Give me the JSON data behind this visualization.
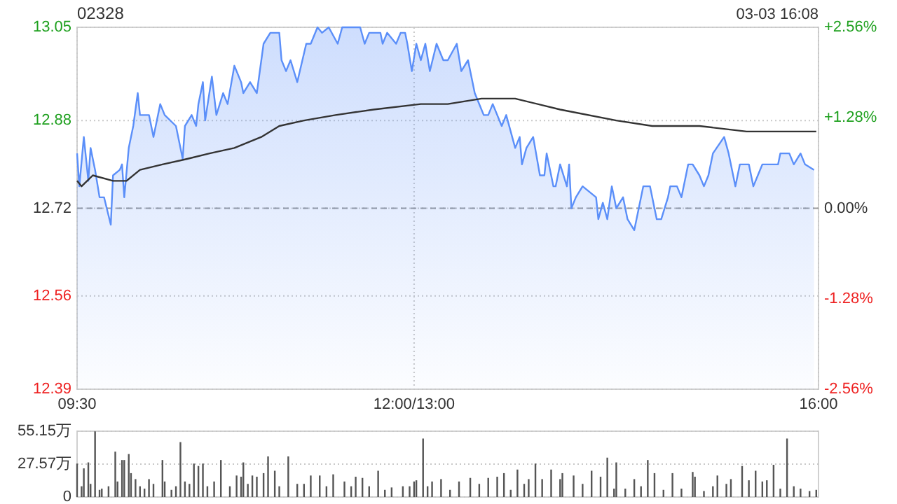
{
  "chart_data": [
    {
      "type": "area",
      "title": "02328",
      "annotations": [
        "03-03 16:08"
      ],
      "categories": [
        "09:30",
        null,
        null,
        null,
        null,
        null,
        null,
        null,
        null,
        null,
        null,
        null,
        null,
        null,
        null,
        null,
        null,
        null,
        null,
        null,
        null,
        null,
        null,
        null,
        null,
        null,
        null,
        null,
        null,
        null,
        null,
        null,
        null,
        null,
        null,
        null,
        null,
        null,
        null,
        null,
        null,
        null,
        null,
        null,
        null,
        null,
        null,
        null,
        null,
        null,
        null,
        null,
        null,
        null,
        null,
        null,
        null,
        null,
        null,
        null,
        null,
        null,
        null,
        null,
        null,
        null,
        null,
        null,
        null,
        null,
        null,
        null,
        null,
        null,
        null,
        null,
        null,
        null,
        null,
        null,
        null,
        null,
        null,
        null,
        null,
        null,
        null,
        null,
        null,
        null,
        null,
        null,
        null,
        null,
        null,
        null,
        null,
        null,
        null,
        null,
        null,
        null,
        null,
        null,
        null,
        null,
        null,
        null,
        null,
        null,
        null,
        null,
        null,
        null,
        null,
        null,
        null,
        null,
        null,
        null,
        null,
        null,
        null,
        null,
        null,
        null,
        null,
        null,
        null,
        null,
        null,
        null,
        null,
        null,
        null,
        null,
        null,
        null,
        null,
        null,
        null,
        null,
        null,
        null,
        null,
        null,
        null,
        null,
        null,
        null,
        "12:00/13:00",
        null,
        null,
        null,
        null,
        null,
        null,
        null,
        null,
        null,
        null,
        null,
        null,
        null,
        null,
        null,
        null,
        null,
        null,
        null,
        null,
        null,
        null,
        null,
        null,
        null,
        null,
        null,
        null,
        null,
        null,
        null,
        null,
        null,
        null,
        null,
        null,
        null,
        null,
        null,
        null,
        null,
        null,
        null,
        null,
        null,
        null,
        null,
        null,
        null,
        null,
        null,
        null,
        null,
        null,
        null,
        null,
        null,
        null,
        null,
        null,
        null,
        null,
        null,
        null,
        null,
        null,
        null,
        null,
        null,
        null,
        null,
        null,
        null,
        null,
        null,
        null,
        null,
        null,
        null,
        null,
        null,
        null,
        null,
        null,
        null,
        null,
        null,
        null,
        null,
        null,
        null,
        null,
        null,
        null,
        null,
        null,
        null,
        null,
        null,
        null,
        null,
        null,
        null,
        null,
        null,
        null,
        null,
        null,
        null,
        null,
        null,
        null,
        null,
        null,
        null,
        null,
        null,
        null,
        null,
        null,
        null,
        null,
        null,
        null,
        null,
        null,
        null,
        null,
        null,
        null,
        null,
        null,
        null,
        null,
        null,
        null,
        null,
        null,
        null,
        null,
        null,
        null,
        null,
        null,
        null,
        null,
        null,
        null,
        null,
        null,
        null,
        null,
        null,
        null,
        null,
        null,
        null,
        null,
        null,
        null,
        null,
        null,
        null,
        null,
        null,
        null,
        null,
        null,
        null,
        null,
        null,
        null,
        null,
        null,
        null,
        null,
        null,
        null,
        null,
        "16:00"
      ],
      "ylim": [
        12.39,
        13.05
      ],
      "yticks": [
        12.39,
        12.56,
        12.72,
        12.88,
        13.05
      ],
      "y2lim": [
        -2.56,
        2.56
      ],
      "y2ticks": [
        {
          "value": 2.56,
          "label": "+2.56%"
        },
        {
          "value": 1.28,
          "label": "+1.28%"
        },
        {
          "value": 0,
          "label": "0.00%"
        },
        {
          "value": -1.28,
          "label": "-1.28%"
        },
        {
          "value": -2.56,
          "label": "-2.56%"
        }
      ],
      "grid": true,
      "ref_lines": [
        {
          "axis": "y",
          "value": 12.72,
          "line_style": "dashed",
          "color": "#999999"
        }
      ],
      "series": [
        {
          "color": "#5b8ff9",
          "values": [
            12.82,
            12.76,
            null,
            12.85,
            null,
            12.77,
            12.83,
            null,
            12.79,
            null,
            12.74,
            null,
            12.74,
            null,
            null,
            12.69,
            12.78,
            null,
            null,
            12.79,
            12.8,
            12.74,
            null,
            12.83,
            null,
            12.87,
            null,
            12.93,
            12.89,
            null,
            null,
            null,
            12.89,
            null,
            12.85,
            null,
            null,
            12.91,
            null,
            12.89,
            null,
            null,
            null,
            null,
            12.87,
            null,
            null,
            12.81,
            12.87,
            null,
            null,
            12.89,
            null,
            12.87,
            12.91,
            null,
            12.95,
            12.88,
            null,
            null,
            12.96,
            null,
            12.89,
            null,
            null,
            12.93,
            null,
            12.91,
            null,
            null,
            12.98,
            null,
            null,
            12.95,
            12.93,
            null,
            null,
            12.95,
            null,
            null,
            12.93,
            null,
            null,
            13.02,
            null,
            null,
            13.04,
            null,
            null,
            null,
            13.04,
            12.99,
            null,
            12.97,
            null,
            12.99,
            null,
            null,
            12.95,
            null,
            null,
            null,
            13.02,
            null,
            13.02,
            null,
            null,
            13.05,
            null,
            13.04,
            null,
            null,
            13.05,
            null,
            null,
            null,
            13.02,
            null,
            13.05,
            null,
            null,
            null,
            null,
            null,
            null,
            null,
            13.05,
            null,
            13.02,
            null,
            13.04,
            null,
            null,
            null,
            null,
            13.04,
            13.02,
            null,
            13.04,
            null,
            null,
            null,
            13.02,
            null,
            13.04,
            null,
            13.04,
            13.02,
            null,
            12.97,
            null,
            13.02,
            null,
            12.99,
            null,
            13.02,
            null,
            12.97,
            null,
            null,
            13.02,
            null,
            null,
            12.99,
            null,
            12.99,
            null,
            null,
            null,
            13.02,
            null,
            12.97,
            null,
            null,
            12.99,
            null,
            null,
            12.93,
            null,
            null,
            null,
            12.89,
            null,
            12.89,
            null,
            12.91,
            null,
            null,
            null,
            12.87,
            null,
            12.89,
            null,
            null,
            null,
            12.83,
            null,
            12.85,
            12.8,
            null,
            12.83,
            null,
            null,
            12.85,
            null,
            null,
            12.78,
            null,
            12.78,
            12.82,
            null,
            null,
            12.76,
            12.76,
            null,
            12.8,
            null,
            null,
            12.76,
            12.8,
            12.72,
            null,
            12.74,
            null,
            null,
            12.76,
            null,
            null,
            null,
            null,
            null,
            12.74,
            12.7,
            null,
            12.73,
            null,
            12.7,
            null,
            12.76,
            null,
            12.72,
            null,
            null,
            12.74,
            null,
            12.7,
            null,
            null,
            12.68,
            null,
            12.72,
            null,
            12.76,
            null,
            null,
            12.76,
            null,
            null,
            12.7,
            null,
            12.7,
            null,
            null,
            12.74,
            12.76,
            null,
            null,
            12.76,
            null,
            12.74,
            null,
            null,
            12.8,
            null,
            12.8,
            null,
            null,
            12.78,
            null,
            12.76,
            null,
            12.78,
            null,
            12.82,
            null,
            null,
            null,
            null,
            12.85,
            null,
            12.82,
            null,
            null,
            12.76,
            null,
            12.8,
            null,
            null,
            null,
            12.8,
            null,
            12.76,
            null,
            12.78,
            null,
            12.8,
            null,
            null,
            null,
            null,
            null,
            null,
            12.8,
            12.82,
            null,
            null,
            null,
            12.82,
            null,
            12.8,
            null,
            null,
            12.82,
            null,
            12.8,
            null,
            null,
            null,
            12.79,
            null,
            null
          ]
        },
        {
          "type": "line",
          "color": "#333333",
          "values": [
            12.77,
            null,
            12.76,
            null,
            null,
            null,
            null,
            12.78,
            null,
            null,
            null,
            null,
            null,
            null,
            null,
            null,
            12.77,
            null,
            null,
            null,
            null,
            null,
            12.77,
            null,
            null,
            null,
            null,
            null,
            12.79,
            null,
            null,
            null,
            null,
            null,
            null,
            null,
            null,
            null,
            12.8,
            null,
            null,
            null,
            null,
            null,
            null,
            null,
            null,
            null,
            null,
            12.81,
            null,
            null,
            null,
            null,
            null,
            null,
            null,
            null,
            null,
            12.82,
            null,
            null,
            null,
            null,
            null,
            null,
            null,
            null,
            null,
            null,
            12.83,
            null,
            null,
            null,
            null,
            null,
            null,
            null,
            null,
            null,
            null,
            null,
            12.85,
            null,
            null,
            null,
            null,
            null,
            null,
            null,
            12.87,
            null,
            null,
            null,
            null,
            null,
            null,
            null,
            null,
            null,
            null,
            12.88,
            null,
            null,
            null,
            null,
            null,
            null,
            null,
            null,
            null,
            null,
            null,
            null,
            null,
            12.89,
            null,
            null,
            null,
            null,
            null,
            null,
            null,
            null,
            null,
            null,
            null,
            null,
            null,
            null,
            null,
            null,
            12.9,
            null,
            null,
            null,
            null,
            null,
            null,
            null,
            null,
            null,
            null,
            null,
            null,
            null,
            null,
            null,
            null,
            null,
            null,
            null,
            null,
            12.91,
            null,
            null,
            null,
            null,
            null,
            null,
            null,
            null,
            null,
            null,
            null,
            12.91,
            null,
            null,
            null,
            null,
            null,
            null,
            null,
            null,
            null,
            null,
            null,
            null,
            null,
            null,
            12.92,
            null,
            null,
            null,
            null,
            null,
            null,
            null,
            null,
            null,
            null,
            null,
            null,
            null,
            null,
            12.92,
            null,
            null,
            null,
            null,
            null,
            null,
            null,
            null,
            null,
            null,
            null,
            null,
            null,
            null,
            null,
            null,
            null,
            null,
            null,
            12.9,
            null,
            null,
            null,
            null,
            null,
            null,
            null,
            null,
            null,
            null,
            null,
            null,
            null,
            null,
            null,
            null,
            null,
            null,
            null,
            null,
            null,
            null,
            null,
            null,
            12.88,
            null,
            null,
            null,
            null,
            null,
            null,
            null,
            null,
            null,
            null,
            null,
            null,
            null,
            null,
            null,
            12.87,
            null,
            null,
            null,
            null,
            null,
            null,
            null,
            null,
            null,
            null,
            null,
            null,
            null,
            null,
            null,
            null,
            null,
            null,
            null,
            null,
            12.87,
            null,
            null,
            null,
            null,
            null,
            null,
            null,
            null,
            null,
            null,
            null,
            null,
            null,
            null,
            null,
            null,
            null,
            null,
            null,
            null,
            12.86,
            null,
            null,
            null,
            null,
            null,
            null,
            null,
            null,
            null,
            null,
            null,
            null,
            null,
            null,
            null,
            null,
            null,
            null,
            null,
            null,
            null,
            null,
            null,
            null,
            null,
            null,
            null,
            null,
            null,
            null,
            12.86,
            null
          ]
        }
      ]
    },
    {
      "type": "bar",
      "ylim": [
        0,
        55.15
      ],
      "yticks": [
        {
          "value": 55.15,
          "label": "55.15万"
        },
        {
          "value": 27.57,
          "label": "27.57万"
        },
        0
      ],
      "grid": "y",
      "tick_labels": "y",
      "categories": [
        null,
        null,
        null,
        null,
        null,
        null,
        null,
        null,
        null,
        null,
        null,
        null,
        null,
        null,
        null,
        null,
        null,
        null,
        null,
        null,
        null,
        null,
        null,
        null,
        null,
        null,
        null,
        null,
        null,
        null,
        null,
        null,
        null,
        null,
        null,
        null,
        null,
        null,
        null,
        null,
        null,
        null,
        null,
        null,
        null,
        null,
        null,
        null,
        null,
        null,
        null,
        null,
        null,
        null,
        null,
        null,
        null,
        null,
        null,
        null,
        null,
        null,
        null,
        null,
        null,
        null,
        null,
        null,
        null,
        null,
        null,
        null,
        null,
        null,
        null,
        null,
        null,
        null,
        null,
        null,
        null,
        null,
        null,
        null,
        null,
        null,
        null,
        null,
        null,
        null,
        null,
        null,
        null,
        null,
        null,
        null,
        null,
        null,
        null,
        null,
        null,
        null,
        null,
        null,
        null,
        null,
        null,
        null,
        null,
        null,
        null,
        null,
        null,
        null,
        null,
        null,
        null,
        null,
        null,
        null,
        null,
        null,
        null,
        null,
        null,
        null,
        null,
        null,
        null,
        null,
        null,
        null,
        null,
        null,
        null,
        null,
        null,
        null,
        null,
        null,
        null,
        null,
        null,
        null,
        null,
        null,
        null,
        null,
        null,
        null,
        null,
        null,
        null,
        null,
        null,
        null,
        null,
        null,
        null,
        null,
        null,
        null,
        null,
        null,
        null,
        null,
        null,
        null,
        null,
        null,
        null,
        null,
        null,
        null,
        null,
        null,
        null,
        null,
        null,
        null,
        null,
        null,
        null,
        null,
        null,
        null,
        null,
        null,
        null,
        null,
        null,
        null,
        null,
        null,
        null,
        null,
        null,
        null,
        null,
        null,
        null,
        null,
        null,
        null,
        null,
        null,
        null,
        null,
        null,
        null,
        null,
        null,
        null,
        null,
        null,
        null,
        null,
        null,
        null,
        null,
        null,
        null,
        null,
        null,
        null,
        null,
        null,
        null,
        null,
        null,
        null,
        null,
        null,
        null,
        null,
        null,
        null,
        null,
        null,
        null,
        null,
        null,
        null,
        null,
        null,
        null,
        null,
        null,
        null,
        null,
        null,
        null,
        null,
        null,
        null,
        null,
        null,
        null,
        null,
        null,
        null,
        null,
        null,
        null,
        null,
        null,
        null,
        null,
        null,
        null,
        null,
        null,
        null,
        null,
        null,
        null,
        null,
        null,
        null,
        null,
        null,
        null,
        null,
        null,
        null,
        null,
        null,
        null,
        null,
        null,
        null,
        null,
        null,
        null,
        null,
        null,
        null,
        null,
        null,
        null,
        null,
        null,
        null,
        null,
        null,
        null,
        null,
        null,
        null,
        null,
        null,
        null,
        null,
        null,
        null,
        null,
        null,
        null,
        null,
        null,
        null,
        null,
        null,
        null,
        null,
        null,
        null,
        null,
        null,
        null,
        null
      ],
      "series": [
        {
          "color": "#555555",
          "values": [
            28,
            null,
            9,
            24,
            null,
            29,
            11,
            null,
            55,
            null,
            6,
            7,
            null,
            null,
            9,
            null,
            null,
            38,
            13,
            null,
            31,
            31,
            null,
            36,
            20,
            null,
            15,
            null,
            9,
            null,
            7,
            null,
            15,
            null,
            11,
            null,
            null,
            null,
            31,
            13,
            null,
            null,
            6,
            null,
            9,
            null,
            46,
            null,
            13,
            null,
            11,
            null,
            28,
            null,
            26,
            null,
            28,
            null,
            9,
            null,
            null,
            13,
            null,
            null,
            31,
            null,
            null,
            null,
            9,
            null,
            null,
            18,
            null,
            17,
            29,
            null,
            11,
            null,
            18,
            null,
            17,
            null,
            null,
            20,
            null,
            34,
            null,
            null,
            22,
            null,
            9,
            null,
            null,
            null,
            34,
            null,
            null,
            null,
            11,
            null,
            null,
            11,
            null,
            null,
            18,
            null,
            null,
            null,
            18,
            null,
            null,
            9,
            null,
            null,
            19,
            null,
            null,
            null,
            null,
            13,
            null,
            null,
            9,
            null,
            17,
            null,
            null,
            16,
            null,
            null,
            9,
            null,
            null,
            null,
            22,
            null,
            null,
            6,
            null,
            null,
            8,
            null,
            null,
            null,
            null,
            9,
            null,
            null,
            9,
            null,
            13,
            14,
            null,
            null,
            49,
            null,
            9,
            null,
            13,
            null,
            null,
            null,
            15,
            null,
            null,
            null,
            6,
            null,
            null,
            null,
            13,
            null,
            null,
            null,
            null,
            16,
            null,
            null,
            null,
            11,
            null,
            null,
            null,
            16,
            null,
            null,
            null,
            17,
            null,
            null,
            20,
            null,
            null,
            6,
            null,
            null,
            23,
            null,
            null,
            11,
            null,
            15,
            null,
            null,
            28,
            null,
            null,
            15,
            null,
            null,
            null,
            23,
            null,
            null,
            null,
            15,
            20,
            null,
            null,
            null,
            null,
            18,
            null,
            null,
            null,
            11,
            null,
            null,
            null,
            22,
            null,
            null,
            null,
            17,
            null,
            null,
            33,
            null,
            null,
            7,
            29,
            null,
            null,
            null,
            7,
            null,
            null,
            null,
            15,
            null,
            null,
            9,
            null,
            null,
            31,
            null,
            null,
            20,
            null,
            null,
            null,
            6,
            null,
            null,
            null,
            20,
            null,
            null,
            null,
            7,
            null,
            null,
            null,
            null,
            21,
            17,
            null,
            null,
            null,
            5,
            null,
            null,
            null,
            9,
            null,
            18,
            null,
            null,
            null,
            11,
            null,
            15,
            null,
            null,
            null,
            null,
            26,
            null,
            null,
            14,
            null,
            null,
            22,
            null,
            null,
            13,
            null,
            14,
            null,
            null,
            27,
            null,
            null,
            7,
            null,
            null,
            49,
            null,
            null,
            9,
            null,
            null,
            7,
            null,
            null,
            null,
            5,
            null,
            null,
            6,
            null
          ]
        }
      ]
    }
  ]
}
